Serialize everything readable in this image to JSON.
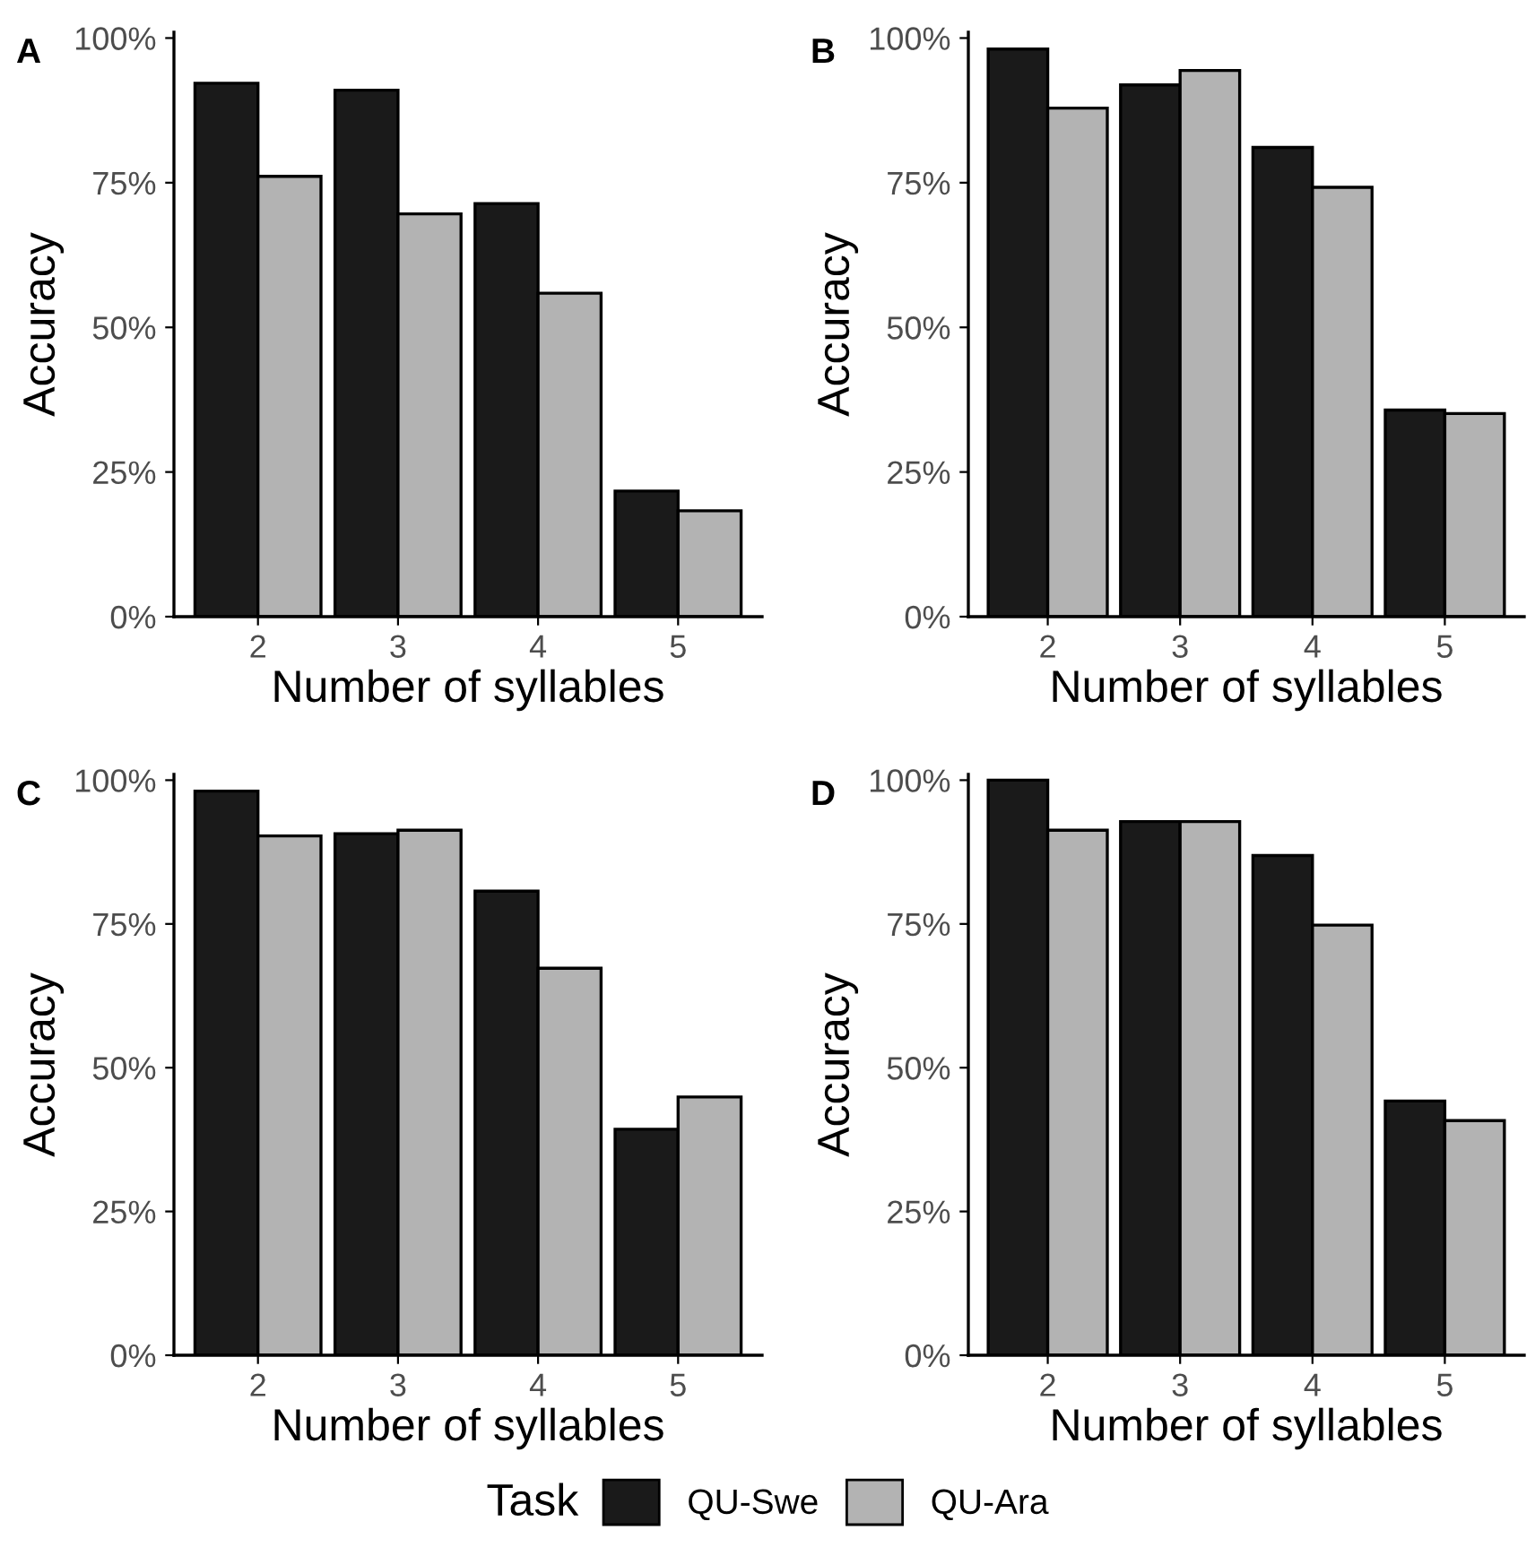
{
  "chart_data": [
    {
      "type": "bar",
      "title": "A",
      "xlabel": "Number of syllables",
      "ylabel": "Accuracy",
      "categories": [
        "2",
        "3",
        "4",
        "5"
      ],
      "ylim": [
        0,
        101
      ],
      "yticks": [
        {
          "value": 0,
          "label": "0%"
        },
        {
          "value": 25,
          "label": "25%"
        },
        {
          "value": 50,
          "label": "50%"
        },
        {
          "value": 75,
          "label": "75%"
        },
        {
          "value": 100,
          "label": "100%"
        }
      ],
      "grid": false,
      "legend": "bottom",
      "legend_title": "Task",
      "series": [
        {
          "name": "QU-Swe",
          "color": "#1a1a1a",
          "values": [
            92.2,
            91.0,
            71.4,
            21.7
          ]
        },
        {
          "name": "QU-Ara",
          "color": "#b3b3b3",
          "values": [
            76.1,
            69.6,
            55.9,
            18.3
          ]
        }
      ]
    },
    {
      "type": "bar",
      "title": "B",
      "xlabel": "Number of syllables",
      "ylabel": "Accuracy",
      "categories": [
        "2",
        "3",
        "4",
        "5"
      ],
      "ylim": [
        0,
        101
      ],
      "yticks": [
        {
          "value": 0,
          "label": "0%"
        },
        {
          "value": 25,
          "label": "25%"
        },
        {
          "value": 50,
          "label": "50%"
        },
        {
          "value": 75,
          "label": "75%"
        },
        {
          "value": 100,
          "label": "100%"
        }
      ],
      "grid": false,
      "series": [
        {
          "color": "#1a1a1a",
          "values": [
            98.1,
            91.9,
            81.1,
            35.7
          ]
        },
        {
          "color": "#b3b3b3",
          "values": [
            87.9,
            94.4,
            74.2,
            35.1
          ]
        }
      ]
    },
    {
      "type": "bar",
      "title": "C",
      "xlabel": "Number of syllables",
      "ylabel": "Accuracy",
      "categories": [
        "2",
        "3",
        "4",
        "5"
      ],
      "ylim": [
        0,
        101
      ],
      "yticks": [
        {
          "value": 0,
          "label": "0%"
        },
        {
          "value": 25,
          "label": "25%"
        },
        {
          "value": 50,
          "label": "50%"
        },
        {
          "value": 75,
          "label": "75%"
        },
        {
          "value": 100,
          "label": "100%"
        }
      ],
      "grid": false,
      "series": [
        {
          "color": "#1a1a1a",
          "values": [
            98.1,
            90.7,
            80.7,
            39.3
          ]
        },
        {
          "color": "#b3b3b3",
          "values": [
            90.3,
            91.3,
            67.3,
            44.9
          ]
        }
      ]
    },
    {
      "type": "bar",
      "title": "D",
      "xlabel": "Number of syllables",
      "ylabel": "Accuracy",
      "categories": [
        "2",
        "3",
        "4",
        "5"
      ],
      "ylim": [
        0,
        101
      ],
      "yticks": [
        {
          "value": 0,
          "label": "0%"
        },
        {
          "value": 25,
          "label": "25%"
        },
        {
          "value": 50,
          "label": "50%"
        },
        {
          "value": 75,
          "label": "75%"
        },
        {
          "value": 100,
          "label": "100%"
        }
      ],
      "grid": false,
      "series": [
        {
          "color": "#1a1a1a",
          "values": [
            100,
            92.8,
            86.9,
            44.2
          ]
        },
        {
          "color": "#b3b3b3",
          "values": [
            91.3,
            92.8,
            74.8,
            40.8
          ]
        }
      ]
    }
  ]
}
